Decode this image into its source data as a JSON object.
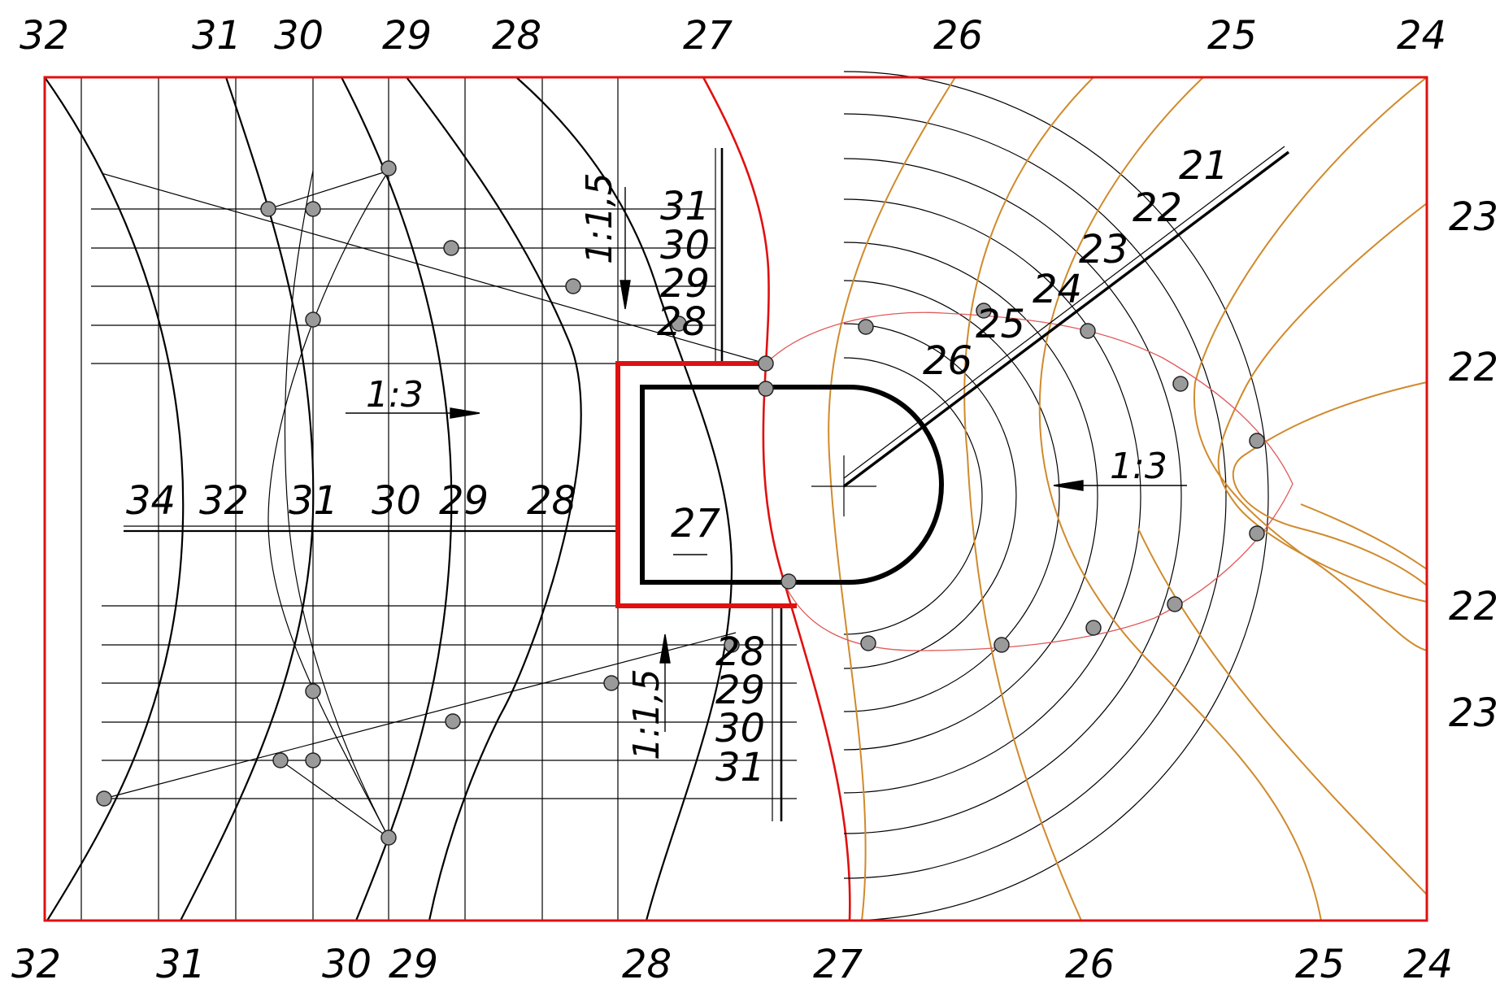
{
  "top_labels": [
    "32",
    "31",
    "30",
    "29",
    "28",
    "27",
    "26",
    "25",
    "24"
  ],
  "bottom_labels": [
    "32",
    "31",
    "30",
    "29",
    "28",
    "27",
    "26",
    "25",
    "24"
  ],
  "right_labels": [
    "23",
    "22",
    "22",
    "23"
  ],
  "axis_labels": [
    "34",
    "32",
    "31",
    "30",
    "29",
    "28"
  ],
  "center_label": "27",
  "slope_upper": "1:1,5",
  "slope_lower": "1:1,5",
  "slope_left": "1:3",
  "slope_right": "1:3",
  "upper_scale": [
    "31",
    "30",
    "29",
    "28"
  ],
  "lower_scale": [
    "28",
    "29",
    "30",
    "31"
  ],
  "diagonal_scale": [
    "21",
    "22",
    "23",
    "24",
    "25",
    "26"
  ],
  "colors": {
    "frame": "#e01010",
    "contour_orange": "#d08a2c",
    "contour_red_thin": "#e05a5a",
    "ink": "#000000"
  }
}
